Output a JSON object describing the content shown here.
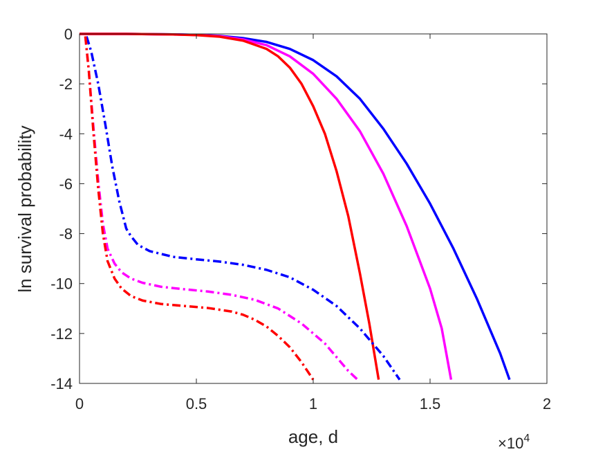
{
  "chart_data": {
    "type": "line",
    "title": "",
    "xlabel": "age, d",
    "ylabel": "ln survival probability",
    "x_exponent_label": "×10",
    "x_exponent_power": "4",
    "xlim": [
      0,
      20000
    ],
    "ylim": [
      -14,
      0
    ],
    "grid": false,
    "legend": "none",
    "xticks": [
      0,
      5000,
      10000,
      15000,
      20000
    ],
    "xtick_labels": [
      "0",
      "0.5",
      "1",
      "1.5",
      "2"
    ],
    "yticks": [
      0,
      -2,
      -4,
      -6,
      -8,
      -10,
      -12,
      -14
    ],
    "ytick_labels": [
      "0",
      "-2",
      "-4",
      "-6",
      "-8",
      "-10",
      "-12",
      "-14"
    ],
    "series": [
      {
        "color": "#0000ff",
        "style": "solid",
        "x": [
          0,
          2000,
          4000,
          5000,
          6000,
          7000,
          8000,
          9000,
          10000,
          11000,
          12000,
          13000,
          14000,
          15000,
          16000,
          17000,
          18000,
          18400
        ],
        "y": [
          0,
          0,
          -0.02,
          -0.04,
          -0.08,
          -0.17,
          -0.32,
          -0.6,
          -1.05,
          -1.7,
          -2.6,
          -3.8,
          -5.2,
          -6.8,
          -8.6,
          -10.6,
          -12.8,
          -13.85
        ]
      },
      {
        "color": "#ff00ff",
        "style": "solid",
        "x": [
          0,
          2000,
          4000,
          5000,
          6000,
          7000,
          8000,
          9000,
          10000,
          11000,
          12000,
          13000,
          14000,
          15000,
          15500,
          15900
        ],
        "y": [
          0,
          0,
          -0.02,
          -0.04,
          -0.09,
          -0.22,
          -0.45,
          -0.9,
          -1.6,
          -2.6,
          -3.9,
          -5.6,
          -7.7,
          -10.2,
          -11.8,
          -13.85
        ]
      },
      {
        "color": "#ff0000",
        "style": "solid",
        "x": [
          0,
          2000,
          4000,
          5000,
          6000,
          7000,
          8000,
          8500,
          9000,
          9500,
          10000,
          10500,
          11000,
          11500,
          12000,
          12400,
          12800
        ],
        "y": [
          0,
          0,
          -0.02,
          -0.05,
          -0.11,
          -0.27,
          -0.6,
          -0.9,
          -1.35,
          -2.0,
          -2.9,
          -4.0,
          -5.5,
          -7.3,
          -9.6,
          -11.6,
          -13.85
        ]
      },
      {
        "color": "#0000ff",
        "style": "dashdot",
        "x": [
          300,
          500,
          800,
          1100,
          1400,
          1700,
          2000,
          2200,
          2500,
          3000,
          4000,
          5000,
          6000,
          7000,
          8000,
          9000,
          10000,
          11000,
          12000,
          13000,
          13700
        ],
        "y": [
          -0.1,
          -0.7,
          -2.0,
          -3.6,
          -5.3,
          -6.7,
          -7.8,
          -8.1,
          -8.45,
          -8.7,
          -8.93,
          -9.03,
          -9.12,
          -9.25,
          -9.45,
          -9.75,
          -10.25,
          -10.9,
          -11.8,
          -12.9,
          -13.85
        ]
      },
      {
        "color": "#ff00ff",
        "style": "dashdot",
        "x": [
          250,
          400,
          600,
          800,
          1000,
          1200,
          1500,
          1800,
          2200,
          2700,
          3500,
          4500,
          5500,
          6500,
          7500,
          8500,
          9500,
          10500,
          11500,
          11900
        ],
        "y": [
          -0.1,
          -1.5,
          -3.8,
          -5.9,
          -7.6,
          -8.6,
          -9.2,
          -9.55,
          -9.8,
          -9.97,
          -10.13,
          -10.23,
          -10.32,
          -10.45,
          -10.65,
          -11.0,
          -11.6,
          -12.4,
          -13.5,
          -13.85
        ]
      },
      {
        "color": "#ff0000",
        "style": "dashdot",
        "x": [
          250,
          400,
          600,
          800,
          1000,
          1200,
          1500,
          1800,
          2200,
          2700,
          3500,
          4500,
          5500,
          6500,
          7000,
          7500,
          8000,
          8500,
          9000,
          9500,
          10000
        ],
        "y": [
          -0.1,
          -1.5,
          -4.0,
          -6.2,
          -8.0,
          -9.1,
          -9.8,
          -10.2,
          -10.5,
          -10.68,
          -10.82,
          -10.9,
          -10.98,
          -11.12,
          -11.25,
          -11.45,
          -11.72,
          -12.1,
          -12.55,
          -13.15,
          -13.85
        ]
      }
    ]
  }
}
